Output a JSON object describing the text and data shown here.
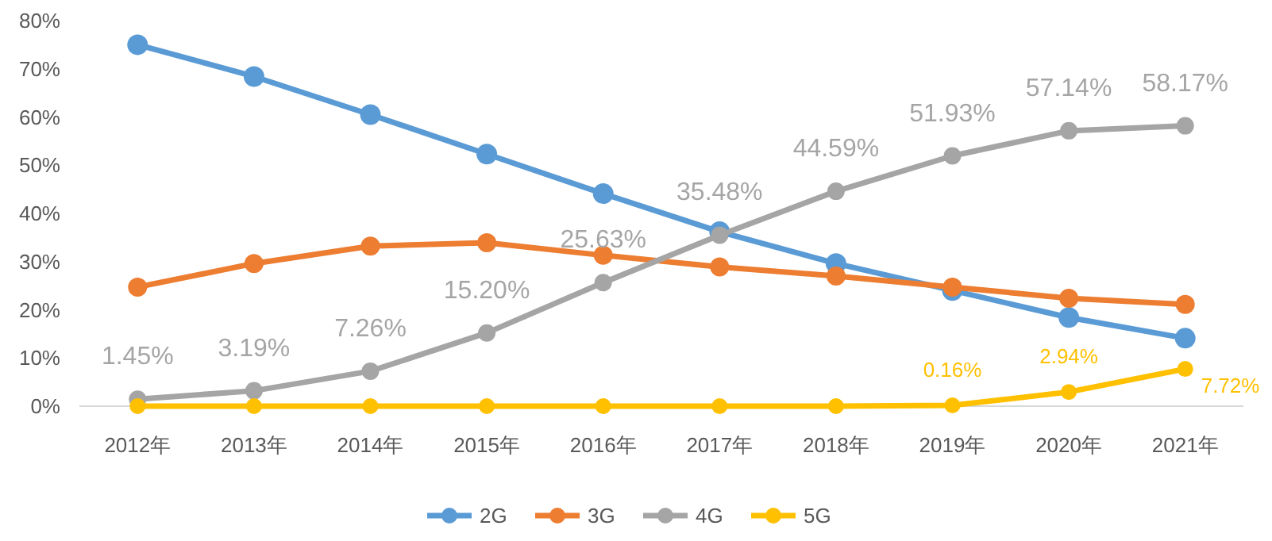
{
  "chart_data": {
    "type": "line",
    "categories": [
      "2012年",
      "2013年",
      "2014年",
      "2015年",
      "2016年",
      "2017年",
      "2018年",
      "2019年",
      "2020年",
      "2021年"
    ],
    "series": [
      {
        "name": "2G",
        "color": "#5b9bd5",
        "values": [
          75.0,
          68.4,
          60.5,
          52.3,
          44.1,
          36.2,
          29.6,
          24.0,
          18.4,
          14.1
        ]
      },
      {
        "name": "3G",
        "color": "#ed7d31",
        "values": [
          24.7,
          29.6,
          33.2,
          33.9,
          31.3,
          28.9,
          27.0,
          24.7,
          22.4,
          21.1
        ]
      },
      {
        "name": "4G",
        "color": "#a5a5a5",
        "values": [
          1.45,
          3.19,
          7.26,
          15.2,
          25.63,
          35.48,
          44.59,
          51.93,
          57.14,
          58.17
        ],
        "value_labels": [
          "1.45%",
          "3.19%",
          "7.26%",
          "15.20%",
          "25.63%",
          "35.48%",
          "44.59%",
          "51.93%",
          "57.14%",
          "58.17%"
        ]
      },
      {
        "name": "5G",
        "color": "#ffc000",
        "values": [
          0,
          0,
          0,
          0,
          0,
          0,
          0,
          0.16,
          2.94,
          7.72
        ],
        "value_labels": [
          null,
          null,
          null,
          null,
          null,
          null,
          null,
          "0.16%",
          "2.94%",
          "7.72%"
        ]
      }
    ],
    "ylim": [
      0,
      80
    ],
    "yticks": [
      {
        "value": 0,
        "label": "0%"
      },
      {
        "value": 10,
        "label": "10%"
      },
      {
        "value": 20,
        "label": "20%"
      },
      {
        "value": 30,
        "label": "30%"
      },
      {
        "value": 40,
        "label": "40%"
      },
      {
        "value": 50,
        "label": "50%"
      },
      {
        "value": 60,
        "label": "60%"
      },
      {
        "value": 70,
        "label": "70%"
      },
      {
        "value": 80,
        "label": "80%"
      }
    ],
    "legend": "bottom",
    "marker": "circle",
    "line_style": "solid"
  }
}
